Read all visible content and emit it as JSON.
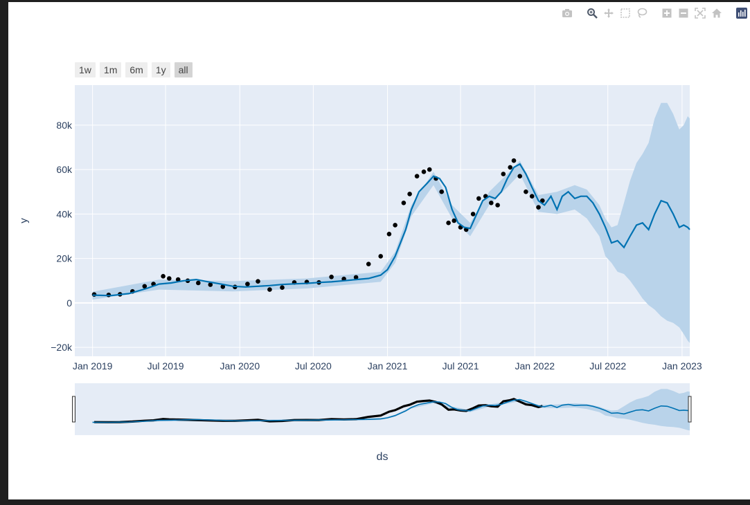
{
  "modebar": {
    "groups": [
      [
        "camera-icon"
      ],
      [
        "zoom-icon",
        "pan-icon",
        "box-select-icon",
        "lasso-select-icon"
      ],
      [
        "zoom-in-icon",
        "zoom-out-icon",
        "autoscale-icon",
        "reset-axes-icon"
      ],
      [
        "plotly-logo-icon"
      ]
    ]
  },
  "range_selector": {
    "buttons": [
      {
        "label": "1w",
        "active": false
      },
      {
        "label": "1m",
        "active": false
      },
      {
        "label": "6m",
        "active": false
      },
      {
        "label": "1y",
        "active": false
      },
      {
        "label": "all",
        "active": true
      }
    ]
  },
  "colors": {
    "plot_bg": "#e5ecf6",
    "grid": "#ffffff",
    "forecast_line": "#0072b2",
    "uncertainty_band": "#b9d3ea",
    "actual_points": "#000000",
    "tick_text": "#2a3f5f",
    "button_bg": "#eeeeee",
    "button_active_bg": "#d4d4d4"
  },
  "chart_data": {
    "type": "line",
    "title": "",
    "xlabel": "ds",
    "ylabel": "y",
    "xlim": [
      "2018-11-18",
      "2023-01-20"
    ],
    "ylim": [
      -24000,
      98000
    ],
    "x_ticks": [
      {
        "date": "2019-01-01",
        "label": "Jan 2019"
      },
      {
        "date": "2019-07-01",
        "label": "Jul 2019"
      },
      {
        "date": "2020-01-01",
        "label": "Jan 2020"
      },
      {
        "date": "2020-07-01",
        "label": "Jul 2020"
      },
      {
        "date": "2021-01-01",
        "label": "Jan 2021"
      },
      {
        "date": "2021-07-01",
        "label": "Jul 2021"
      },
      {
        "date": "2022-01-01",
        "label": "Jan 2022"
      },
      {
        "date": "2022-07-01",
        "label": "Jul 2022"
      },
      {
        "date": "2023-01-01",
        "label": "Jan 2023"
      }
    ],
    "y_ticks": [
      {
        "value": -20000,
        "label": "−20k"
      },
      {
        "value": 0,
        "label": "0"
      },
      {
        "value": 20000,
        "label": "20k"
      },
      {
        "value": 40000,
        "label": "40k"
      },
      {
        "value": 60000,
        "label": "60k"
      },
      {
        "value": 80000,
        "label": "80k"
      }
    ],
    "grid": true,
    "series": [
      {
        "kind": "forecast",
        "x": [
          "2019-01-01",
          "2019-02-15",
          "2019-04-01",
          "2019-05-15",
          "2019-06-15",
          "2019-07-15",
          "2019-08-15",
          "2019-09-15",
          "2019-10-15",
          "2019-11-15",
          "2019-12-15",
          "2020-01-15",
          "2020-02-15",
          "2020-03-15",
          "2020-04-15",
          "2020-05-15",
          "2020-06-15",
          "2020-07-15",
          "2020-08-15",
          "2020-09-15",
          "2020-10-15",
          "2020-11-15",
          "2020-12-15",
          "2021-01-01",
          "2021-01-20",
          "2021-02-15",
          "2021-03-01",
          "2021-03-20",
          "2021-04-10",
          "2021-04-25",
          "2021-05-10",
          "2021-05-25",
          "2021-06-10",
          "2021-06-25",
          "2021-07-10",
          "2021-07-25",
          "2021-08-10",
          "2021-08-25",
          "2021-09-10",
          "2021-09-25",
          "2021-10-10",
          "2021-10-25",
          "2021-11-10",
          "2021-11-25",
          "2021-12-10",
          "2021-12-25",
          "2022-01-10",
          "2022-01-25",
          "2022-02-10",
          "2022-02-25",
          "2022-03-10",
          "2022-03-25",
          "2022-04-10",
          "2022-04-25",
          "2022-05-10",
          "2022-05-25",
          "2022-06-10",
          "2022-06-25",
          "2022-07-10",
          "2022-07-25",
          "2022-08-10",
          "2022-08-25",
          "2022-09-10",
          "2022-09-25",
          "2022-10-10",
          "2022-10-25",
          "2022-11-10",
          "2022-11-25",
          "2022-12-10",
          "2022-12-25",
          "2023-01-05",
          "2023-01-15",
          "2023-01-20"
        ],
        "values": [
          3500,
          3300,
          4200,
          6500,
          8500,
          9000,
          10000,
          10500,
          9500,
          8500,
          7500,
          7200,
          7500,
          7800,
          8300,
          8600,
          8800,
          9200,
          9500,
          10000,
          10500,
          11000,
          12500,
          15000,
          21000,
          33000,
          42000,
          50000,
          54000,
          57000,
          56000,
          52000,
          42000,
          36000,
          34000,
          33500,
          40000,
          46000,
          48000,
          47000,
          50000,
          56000,
          61000,
          62500,
          58000,
          52000,
          46000,
          44000,
          48000,
          42000,
          48000,
          50000,
          47000,
          48000,
          48000,
          45000,
          40000,
          34000,
          27000,
          28000,
          25000,
          30000,
          35000,
          36000,
          33000,
          40000,
          46000,
          45000,
          40000,
          34000,
          35000,
          34000,
          33000
        ]
      },
      {
        "kind": "uncertainty_upper",
        "x": [
          "2019-01-01",
          "2019-06-15",
          "2019-12-15",
          "2020-06-15",
          "2020-12-15",
          "2021-01-20",
          "2021-03-01",
          "2021-04-25",
          "2021-06-10",
          "2021-07-25",
          "2021-09-10",
          "2021-10-25",
          "2021-11-25",
          "2022-01-10",
          "2022-02-25",
          "2022-04-10",
          "2022-05-10",
          "2022-06-10",
          "2022-06-25",
          "2022-07-10",
          "2022-07-25",
          "2022-08-10",
          "2022-08-25",
          "2022-09-10",
          "2022-09-25",
          "2022-10-10",
          "2022-10-25",
          "2022-11-10",
          "2022-11-25",
          "2022-12-10",
          "2022-12-25",
          "2023-01-05",
          "2023-01-15",
          "2023-01-20"
        ],
        "values": [
          5000,
          10500,
          9800,
          11000,
          14000,
          23000,
          44000,
          59000,
          44000,
          36000,
          50000,
          58000,
          64000,
          48500,
          50000,
          53000,
          51000,
          44000,
          38000,
          34000,
          35000,
          45000,
          55000,
          63000,
          67000,
          72000,
          83000,
          90000,
          90000,
          85000,
          78000,
          80000,
          84000,
          83000
        ]
      },
      {
        "kind": "uncertainty_lower",
        "x": [
          "2019-01-01",
          "2019-06-15",
          "2019-12-15",
          "2020-06-15",
          "2020-12-15",
          "2021-01-20",
          "2021-03-01",
          "2021-04-25",
          "2021-06-10",
          "2021-07-25",
          "2021-09-10",
          "2021-10-25",
          "2021-11-25",
          "2022-01-10",
          "2022-02-25",
          "2022-04-10",
          "2022-05-10",
          "2022-06-10",
          "2022-06-25",
          "2022-07-10",
          "2022-07-25",
          "2022-08-10",
          "2022-08-25",
          "2022-09-10",
          "2022-09-25",
          "2022-10-10",
          "2022-10-25",
          "2022-11-10",
          "2022-11-25",
          "2022-12-10",
          "2022-12-25",
          "2023-01-05",
          "2023-01-15",
          "2023-01-20"
        ],
        "values": [
          1500,
          6000,
          5200,
          6500,
          9500,
          18000,
          39000,
          53000,
          38000,
          30000,
          44000,
          52000,
          58000,
          41000,
          40000,
          42000,
          38000,
          30000,
          21000,
          18000,
          14000,
          13000,
          10000,
          6000,
          2000,
          -1000,
          -3000,
          -6000,
          -8000,
          -9000,
          -11000,
          -14000,
          -17000,
          -18000
        ]
      },
      {
        "kind": "actual",
        "x": [
          "2019-01-05",
          "2019-02-10",
          "2019-03-10",
          "2019-04-10",
          "2019-05-10",
          "2019-06-01",
          "2019-06-25",
          "2019-07-10",
          "2019-08-01",
          "2019-08-25",
          "2019-09-20",
          "2019-10-20",
          "2019-11-20",
          "2019-12-20",
          "2020-01-20",
          "2020-02-15",
          "2020-03-15",
          "2020-04-15",
          "2020-05-15",
          "2020-06-15",
          "2020-07-15",
          "2020-08-15",
          "2020-09-15",
          "2020-10-15",
          "2020-11-15",
          "2020-12-15",
          "2021-01-05",
          "2021-01-20",
          "2021-02-10",
          "2021-02-25",
          "2021-03-15",
          "2021-04-01",
          "2021-04-15",
          "2021-05-01",
          "2021-05-15",
          "2021-06-01",
          "2021-06-15",
          "2021-07-01",
          "2021-07-15",
          "2021-08-01",
          "2021-08-15",
          "2021-09-01",
          "2021-09-15",
          "2021-10-01",
          "2021-10-15",
          "2021-11-01",
          "2021-11-10",
          "2021-11-25",
          "2021-12-10",
          "2021-12-25",
          "2022-01-10",
          "2022-01-20"
        ],
        "values": [
          3800,
          3600,
          3900,
          5200,
          7500,
          8500,
          12000,
          11000,
          10500,
          10000,
          9000,
          8200,
          7300,
          7200,
          8500,
          9700,
          6000,
          6900,
          9200,
          9400,
          9200,
          11700,
          10800,
          11500,
          17500,
          21000,
          31000,
          35000,
          45000,
          49000,
          57000,
          59000,
          60000,
          56000,
          50000,
          36000,
          37000,
          34000,
          33000,
          40000,
          47000,
          48000,
          45000,
          44000,
          58000,
          61000,
          64000,
          57000,
          50000,
          48000,
          43000,
          46000
        ]
      }
    ],
    "range_slider": true
  }
}
